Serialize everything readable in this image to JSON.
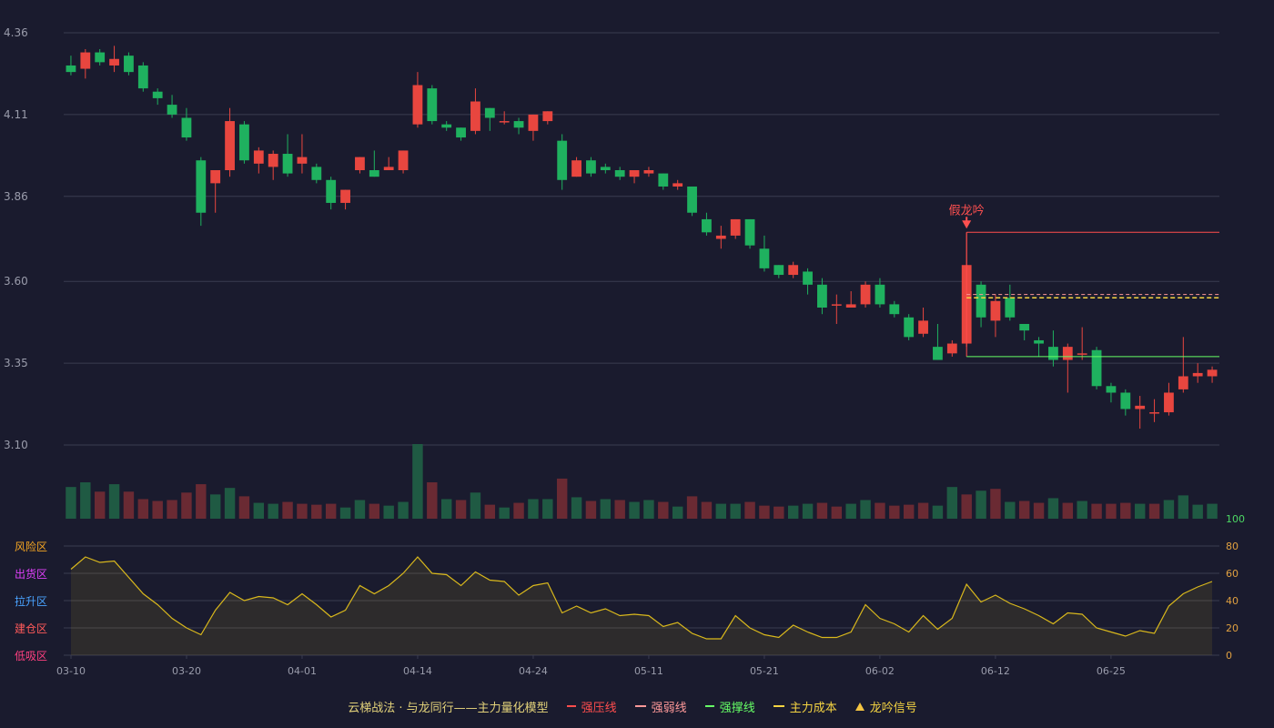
{
  "chart_data": {
    "type": "candlestick",
    "price_axis": {
      "ticks": [
        3.1,
        3.35,
        3.6,
        3.86,
        4.11,
        4.36
      ],
      "range": [
        3.1,
        4.36
      ]
    },
    "osc_axis": {
      "ticks": [
        0,
        20,
        40,
        60,
        80,
        100
      ],
      "range": [
        0,
        100
      ]
    },
    "zone_labels": [
      {
        "label": "风险区",
        "color": "#f5a623",
        "value": 80
      },
      {
        "label": "出货区",
        "color": "#e040fb",
        "value": 60
      },
      {
        "label": "拉升区",
        "color": "#4aa3ff",
        "value": 40
      },
      {
        "label": "建仓区",
        "color": "#ff5a5a",
        "value": 20
      },
      {
        "label": "低吸区",
        "color": "#ff4081",
        "value": 0
      }
    ],
    "x_tick_labels": [
      {
        "i": 0,
        "label": "03-10"
      },
      {
        "i": 8,
        "label": "03-20"
      },
      {
        "i": 16,
        "label": "04-01"
      },
      {
        "i": 24,
        "label": "04-14"
      },
      {
        "i": 32,
        "label": "04-24"
      },
      {
        "i": 40,
        "label": "05-11"
      },
      {
        "i": 48,
        "label": "05-21"
      },
      {
        "i": 56,
        "label": "06-02"
      },
      {
        "i": 64,
        "label": "06-12"
      },
      {
        "i": 72,
        "label": "06-25"
      }
    ],
    "candles": [
      [
        4.26,
        4.24,
        4.29,
        4.23
      ],
      [
        4.25,
        4.3,
        4.31,
        4.22
      ],
      [
        4.3,
        4.27,
        4.31,
        4.26
      ],
      [
        4.26,
        4.28,
        4.32,
        4.24
      ],
      [
        4.29,
        4.24,
        4.3,
        4.23
      ],
      [
        4.26,
        4.19,
        4.27,
        4.18
      ],
      [
        4.18,
        4.16,
        4.19,
        4.14
      ],
      [
        4.14,
        4.11,
        4.17,
        4.1
      ],
      [
        4.1,
        4.04,
        4.13,
        4.03
      ],
      [
        3.97,
        3.81,
        3.98,
        3.77
      ],
      [
        3.9,
        3.94,
        3.94,
        3.81
      ],
      [
        3.94,
        4.09,
        4.13,
        3.92
      ],
      [
        4.08,
        3.97,
        4.09,
        3.96
      ],
      [
        3.96,
        4.0,
        4.01,
        3.93
      ],
      [
        3.95,
        3.99,
        4.0,
        3.91
      ],
      [
        3.99,
        3.93,
        4.05,
        3.92
      ],
      [
        3.96,
        3.98,
        4.05,
        3.93
      ],
      [
        3.95,
        3.91,
        3.96,
        3.9
      ],
      [
        3.91,
        3.84,
        3.92,
        3.82
      ],
      [
        3.84,
        3.88,
        3.88,
        3.82
      ],
      [
        3.94,
        3.98,
        3.98,
        3.93
      ],
      [
        3.94,
        3.92,
        4.0,
        3.92
      ],
      [
        3.94,
        3.95,
        3.98,
        3.94
      ],
      [
        3.94,
        4.0,
        4.0,
        3.93
      ],
      [
        4.08,
        4.2,
        4.24,
        4.07
      ],
      [
        4.19,
        4.09,
        4.2,
        4.08
      ],
      [
        4.08,
        4.07,
        4.09,
        4.06
      ],
      [
        4.07,
        4.04,
        4.07,
        4.03
      ],
      [
        4.06,
        4.15,
        4.19,
        4.05
      ],
      [
        4.13,
        4.1,
        4.13,
        4.06
      ],
      [
        4.09,
        4.09,
        4.12,
        4.08
      ],
      [
        4.09,
        4.07,
        4.1,
        4.05
      ],
      [
        4.06,
        4.11,
        4.11,
        4.03
      ],
      [
        4.09,
        4.12,
        4.12,
        4.08
      ],
      [
        4.03,
        3.91,
        4.05,
        3.88
      ],
      [
        3.92,
        3.97,
        3.98,
        3.92
      ],
      [
        3.97,
        3.93,
        3.98,
        3.92
      ],
      [
        3.95,
        3.94,
        3.96,
        3.93
      ],
      [
        3.94,
        3.92,
        3.95,
        3.91
      ],
      [
        3.92,
        3.94,
        3.94,
        3.9
      ],
      [
        3.93,
        3.94,
        3.95,
        3.92
      ],
      [
        3.93,
        3.89,
        3.93,
        3.88
      ],
      [
        3.89,
        3.9,
        3.91,
        3.88
      ],
      [
        3.89,
        3.81,
        3.89,
        3.8
      ],
      [
        3.79,
        3.75,
        3.81,
        3.74
      ],
      [
        3.73,
        3.74,
        3.77,
        3.7
      ],
      [
        3.74,
        3.79,
        3.79,
        3.73
      ],
      [
        3.79,
        3.71,
        3.79,
        3.7
      ],
      [
        3.7,
        3.64,
        3.74,
        3.63
      ],
      [
        3.65,
        3.62,
        3.65,
        3.61
      ],
      [
        3.62,
        3.65,
        3.66,
        3.61
      ],
      [
        3.63,
        3.59,
        3.64,
        3.56
      ],
      [
        3.59,
        3.52,
        3.61,
        3.5
      ],
      [
        3.53,
        3.53,
        3.56,
        3.47
      ],
      [
        3.52,
        3.53,
        3.57,
        3.52
      ],
      [
        3.53,
        3.59,
        3.6,
        3.52
      ],
      [
        3.59,
        3.53,
        3.61,
        3.52
      ],
      [
        3.53,
        3.5,
        3.54,
        3.49
      ],
      [
        3.49,
        3.43,
        3.5,
        3.42
      ],
      [
        3.44,
        3.48,
        3.52,
        3.43
      ],
      [
        3.4,
        3.36,
        3.47,
        3.36
      ],
      [
        3.38,
        3.41,
        3.42,
        3.37
      ],
      [
        3.41,
        3.65,
        3.75,
        3.4
      ],
      [
        3.59,
        3.49,
        3.6,
        3.46
      ],
      [
        3.48,
        3.54,
        3.56,
        3.43
      ],
      [
        3.55,
        3.49,
        3.59,
        3.48
      ],
      [
        3.47,
        3.45,
        3.47,
        3.42
      ],
      [
        3.42,
        3.41,
        3.43,
        3.37
      ],
      [
        3.4,
        3.36,
        3.45,
        3.34
      ],
      [
        3.36,
        3.4,
        3.41,
        3.26
      ],
      [
        3.38,
        3.38,
        3.46,
        3.36
      ],
      [
        3.39,
        3.28,
        3.4,
        3.27
      ],
      [
        3.28,
        3.26,
        3.29,
        3.23
      ],
      [
        3.26,
        3.21,
        3.27,
        3.19
      ],
      [
        3.21,
        3.22,
        3.25,
        3.15
      ],
      [
        3.2,
        3.2,
        3.24,
        3.17
      ],
      [
        3.2,
        3.26,
        3.29,
        3.19
      ],
      [
        3.27,
        3.31,
        3.43,
        3.26
      ],
      [
        3.31,
        3.32,
        3.35,
        3.29
      ],
      [
        3.31,
        3.33,
        3.34,
        3.29
      ]
    ],
    "volumes": [
      [
        34,
        "d"
      ],
      [
        39,
        "d"
      ],
      [
        29,
        "u"
      ],
      [
        37,
        "d"
      ],
      [
        29,
        "u"
      ],
      [
        21,
        "u"
      ],
      [
        19,
        "u"
      ],
      [
        20,
        "u"
      ],
      [
        28,
        "u"
      ],
      [
        37,
        "u"
      ],
      [
        26,
        "d"
      ],
      [
        33,
        "d"
      ],
      [
        24,
        "u"
      ],
      [
        17,
        "d"
      ],
      [
        16,
        "d"
      ],
      [
        18,
        "u"
      ],
      [
        16,
        "u"
      ],
      [
        15,
        "u"
      ],
      [
        16,
        "u"
      ],
      [
        12,
        "d"
      ],
      [
        20,
        "d"
      ],
      [
        16,
        "u"
      ],
      [
        14,
        "d"
      ],
      [
        18,
        "d"
      ],
      [
        80,
        "d"
      ],
      [
        39,
        "u"
      ],
      [
        21,
        "d"
      ],
      [
        20,
        "u"
      ],
      [
        28,
        "d"
      ],
      [
        15,
        "u"
      ],
      [
        12,
        "d"
      ],
      [
        17,
        "u"
      ],
      [
        21,
        "d"
      ],
      [
        21,
        "d"
      ],
      [
        43,
        "u"
      ],
      [
        23,
        "d"
      ],
      [
        19,
        "u"
      ],
      [
        21,
        "d"
      ],
      [
        20,
        "u"
      ],
      [
        18,
        "d"
      ],
      [
        20,
        "d"
      ],
      [
        18,
        "u"
      ],
      [
        13,
        "d"
      ],
      [
        24,
        "u"
      ],
      [
        18,
        "u"
      ],
      [
        16,
        "d"
      ],
      [
        16,
        "d"
      ],
      [
        18,
        "u"
      ],
      [
        14,
        "u"
      ],
      [
        13,
        "u"
      ],
      [
        14,
        "d"
      ],
      [
        16,
        "d"
      ],
      [
        17,
        "u"
      ],
      [
        13,
        "u"
      ],
      [
        16,
        "d"
      ],
      [
        20,
        "d"
      ],
      [
        17,
        "u"
      ],
      [
        14,
        "u"
      ],
      [
        15,
        "u"
      ],
      [
        17,
        "u"
      ],
      [
        14,
        "d"
      ],
      [
        34,
        "d"
      ],
      [
        26,
        "u"
      ],
      [
        30,
        "d"
      ],
      [
        32,
        "u"
      ],
      [
        18,
        "d"
      ],
      [
        19,
        "u"
      ],
      [
        17,
        "u"
      ],
      [
        22,
        "d"
      ],
      [
        17,
        "u"
      ],
      [
        19,
        "d"
      ],
      [
        16,
        "u"
      ],
      [
        16,
        "u"
      ],
      [
        17,
        "u"
      ],
      [
        16,
        "d"
      ],
      [
        16,
        "u"
      ],
      [
        20,
        "d"
      ],
      [
        25,
        "d"
      ],
      [
        15,
        "d"
      ],
      [
        16,
        "d"
      ]
    ],
    "oscillator": [
      63,
      72,
      68,
      69,
      57,
      45,
      37,
      27,
      20,
      15,
      33,
      46,
      40,
      43,
      42,
      37,
      45,
      37,
      28,
      33,
      51,
      45,
      51,
      60,
      72,
      60,
      59,
      51,
      61,
      55,
      54,
      44,
      51,
      53,
      31,
      36,
      31,
      34,
      29,
      30,
      29,
      21,
      24,
      16,
      12,
      12,
      29,
      20,
      15,
      13,
      22,
      17,
      13,
      13,
      17,
      37,
      27,
      23,
      17,
      29,
      19,
      27,
      52,
      39,
      44,
      38,
      34,
      29,
      23,
      31,
      30,
      20,
      17,
      14,
      18,
      16,
      36,
      45,
      50,
      54
    ],
    "strong_pressure": {
      "value": 3.75,
      "from": 62,
      "color": "#ff4d4d"
    },
    "strong_support": {
      "value": 3.37,
      "from": 62,
      "color": "#66ff66"
    },
    "main_cost": {
      "value": 3.55,
      "from": 62,
      "color": "#f5d442"
    },
    "weak_line": {
      "value": 3.56,
      "from": 62,
      "color": "#ff9999"
    },
    "signal": {
      "index": 62,
      "label": "假龙吟",
      "color": "#ff5050"
    },
    "colors": {
      "up": "#e8463f",
      "down": "#1fb15f",
      "vol_up": "#6a2a33",
      "vol_down": "#1f5a43",
      "osc_line": "#d9b81c",
      "grid": "#3a3c50",
      "axis_text": "#9a9cab"
    },
    "legend": {
      "title": "云梯战法 · 与龙同行——主力量化模型",
      "items": [
        {
          "label": "强压线",
          "color": "#ff4d4d",
          "style": "solid"
        },
        {
          "label": "强弱线",
          "color": "#ff9999",
          "style": "dash"
        },
        {
          "label": "强撑线",
          "color": "#66ff66",
          "style": "solid"
        },
        {
          "label": "主力成本",
          "color": "#f5d442",
          "style": "dash"
        },
        {
          "label": "龙吟信号",
          "color": "#f5c542",
          "style": "triangle"
        }
      ]
    }
  }
}
